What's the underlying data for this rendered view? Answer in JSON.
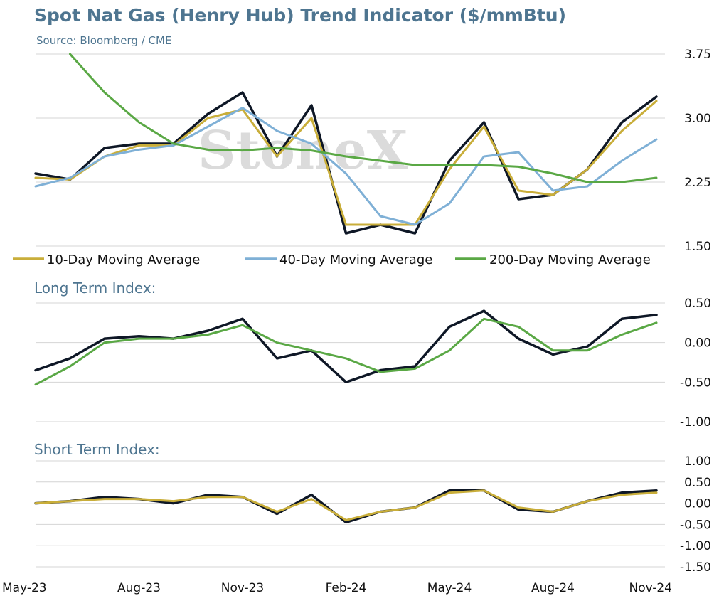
{
  "title": "Spot Nat Gas (Henry Hub) Trend Indicator ($/mmBtu)",
  "subtitle": "Source: Bloomberg / CME",
  "watermark": "StoneX",
  "x_tick_labels": [
    "May-23",
    "Aug-23",
    "Nov-23",
    "Feb-24",
    "May-24",
    "Aug-24",
    "Nov-24"
  ],
  "colors": {
    "spot": "#0e1726",
    "ma10": "#c9ae3a",
    "ma40": "#7fb0d6",
    "ma200": "#5aa845",
    "text": "#4e7590"
  },
  "chart_data": [
    {
      "type": "line",
      "panel": "price",
      "title": "Spot Nat Gas (Henry Hub) Trend Indicator ($/mmBtu)",
      "subtitle": "Source: Bloomberg / CME",
      "ylim": [
        1.5,
        3.75
      ],
      "yticks": [
        1.5,
        2.25,
        3.0,
        3.75
      ],
      "ytick_labels": [
        "1.50",
        "2.25",
        "3.00",
        "3.75"
      ],
      "grid": true,
      "legend_position": "bottom",
      "x_range": [
        "May-23",
        "Nov-24"
      ],
      "series": [
        {
          "key": "spot",
          "name": "",
          "color": "#0e1726",
          "points": [
            [
              "May-23",
              2.35
            ],
            [
              "Jun-23",
              2.28
            ],
            [
              "Jul-23",
              2.65
            ],
            [
              "Aug-23",
              2.7
            ],
            [
              "Sep-23",
              2.7
            ],
            [
              "Oct-23",
              3.05
            ],
            [
              "Nov-23",
              3.3
            ],
            [
              "Dec-23",
              2.55
            ],
            [
              "Jan-24",
              3.15
            ],
            [
              "Feb-24",
              1.65
            ],
            [
              "Mar-24",
              1.75
            ],
            [
              "Apr-24",
              1.65
            ],
            [
              "May-24",
              2.5
            ],
            [
              "Jun-24",
              2.95
            ],
            [
              "Jul-24",
              2.05
            ],
            [
              "Aug-24",
              2.1
            ],
            [
              "Sep-24",
              2.4
            ],
            [
              "Oct-24",
              2.95
            ],
            [
              "Nov-24",
              3.25
            ]
          ]
        },
        {
          "key": "ma10",
          "name": "10-Day Moving Average",
          "color": "#c9ae3a",
          "points": [
            [
              "May-23",
              2.3
            ],
            [
              "Jun-23",
              2.28
            ],
            [
              "Jul-23",
              2.55
            ],
            [
              "Aug-23",
              2.68
            ],
            [
              "Sep-23",
              2.68
            ],
            [
              "Oct-23",
              3.0
            ],
            [
              "Nov-23",
              3.1
            ],
            [
              "Dec-23",
              2.55
            ],
            [
              "Jan-24",
              3.0
            ],
            [
              "Feb-24",
              1.75
            ],
            [
              "Mar-24",
              1.75
            ],
            [
              "Apr-24",
              1.75
            ],
            [
              "May-24",
              2.4
            ],
            [
              "Jun-24",
              2.9
            ],
            [
              "Jul-24",
              2.15
            ],
            [
              "Aug-24",
              2.1
            ],
            [
              "Sep-24",
              2.4
            ],
            [
              "Oct-24",
              2.85
            ],
            [
              "Nov-24",
              3.2
            ]
          ]
        },
        {
          "key": "ma40",
          "name": "40-Day Moving Average",
          "color": "#7fb0d6",
          "points": [
            [
              "May-23",
              2.2
            ],
            [
              "Jun-23",
              2.3
            ],
            [
              "Jul-23",
              2.55
            ],
            [
              "Aug-23",
              2.63
            ],
            [
              "Sep-23",
              2.68
            ],
            [
              "Oct-23",
              2.9
            ],
            [
              "Nov-23",
              3.12
            ],
            [
              "Dec-23",
              2.85
            ],
            [
              "Jan-24",
              2.7
            ],
            [
              "Feb-24",
              2.35
            ],
            [
              "Mar-24",
              1.85
            ],
            [
              "Apr-24",
              1.75
            ],
            [
              "May-24",
              2.0
            ],
            [
              "Jun-24",
              2.55
            ],
            [
              "Jul-24",
              2.6
            ],
            [
              "Aug-24",
              2.15
            ],
            [
              "Sep-24",
              2.2
            ],
            [
              "Oct-24",
              2.5
            ],
            [
              "Nov-24",
              2.75
            ]
          ]
        },
        {
          "key": "ma200",
          "name": "200-Day Moving Average",
          "color": "#5aa845",
          "points": [
            [
              "Jun-23",
              3.75
            ],
            [
              "Jul-23",
              3.3
            ],
            [
              "Aug-23",
              2.95
            ],
            [
              "Sep-23",
              2.7
            ],
            [
              "Oct-23",
              2.63
            ],
            [
              "Nov-23",
              2.62
            ],
            [
              "Dec-23",
              2.65
            ],
            [
              "Jan-24",
              2.62
            ],
            [
              "Feb-24",
              2.55
            ],
            [
              "Mar-24",
              2.5
            ],
            [
              "Apr-24",
              2.45
            ],
            [
              "May-24",
              2.45
            ],
            [
              "Jun-24",
              2.45
            ],
            [
              "Jul-24",
              2.43
            ],
            [
              "Aug-24",
              2.35
            ],
            [
              "Sep-24",
              2.25
            ],
            [
              "Oct-24",
              2.25
            ],
            [
              "Nov-24",
              2.3
            ]
          ]
        }
      ]
    },
    {
      "type": "line",
      "panel": "long_term",
      "title": "Long Term Index:",
      "ylim": [
        -1.0,
        0.5
      ],
      "yticks": [
        -1.0,
        -0.5,
        0.0,
        0.5
      ],
      "ytick_labels": [
        "-1.00",
        "-0.50",
        "0.00",
        "0.50"
      ],
      "grid": true,
      "series": [
        {
          "key": "long_black",
          "name": "",
          "color": "#0e1726",
          "points": [
            [
              "May-23",
              -0.35
            ],
            [
              "Jun-23",
              -0.2
            ],
            [
              "Jul-23",
              0.05
            ],
            [
              "Aug-23",
              0.08
            ],
            [
              "Sep-23",
              0.05
            ],
            [
              "Oct-23",
              0.15
            ],
            [
              "Nov-23",
              0.3
            ],
            [
              "Dec-23",
              -0.2
            ],
            [
              "Jan-24",
              -0.1
            ],
            [
              "Feb-24",
              -0.5
            ],
            [
              "Mar-24",
              -0.35
            ],
            [
              "Apr-24",
              -0.3
            ],
            [
              "May-24",
              0.2
            ],
            [
              "Jun-24",
              0.4
            ],
            [
              "Jul-24",
              0.05
            ],
            [
              "Aug-24",
              -0.15
            ],
            [
              "Sep-24",
              -0.05
            ],
            [
              "Oct-24",
              0.3
            ],
            [
              "Nov-24",
              0.35
            ]
          ]
        },
        {
          "key": "long_green",
          "name": "",
          "color": "#5aa845",
          "points": [
            [
              "May-23",
              -0.53
            ],
            [
              "Jun-23",
              -0.3
            ],
            [
              "Jul-23",
              0.0
            ],
            [
              "Aug-23",
              0.05
            ],
            [
              "Sep-23",
              0.05
            ],
            [
              "Oct-23",
              0.1
            ],
            [
              "Nov-23",
              0.22
            ],
            [
              "Dec-23",
              0.0
            ],
            [
              "Jan-24",
              -0.1
            ],
            [
              "Feb-24",
              -0.2
            ],
            [
              "Mar-24",
              -0.37
            ],
            [
              "Apr-24",
              -0.33
            ],
            [
              "May-24",
              -0.1
            ],
            [
              "Jun-24",
              0.3
            ],
            [
              "Jul-24",
              0.2
            ],
            [
              "Aug-24",
              -0.1
            ],
            [
              "Sep-24",
              -0.1
            ],
            [
              "Oct-24",
              0.1
            ],
            [
              "Nov-24",
              0.25
            ]
          ]
        }
      ]
    },
    {
      "type": "line",
      "panel": "short_term",
      "title": "Short Term Index:",
      "ylim": [
        -1.5,
        1.0
      ],
      "yticks": [
        -1.5,
        -1.0,
        -0.5,
        0.0,
        0.5,
        1.0
      ],
      "ytick_labels": [
        "-1.50",
        "-1.00",
        "-0.50",
        "0.00",
        "0.50",
        "1.00"
      ],
      "grid": true,
      "series": [
        {
          "key": "short_black",
          "name": "",
          "color": "#0e1726",
          "points": [
            [
              "May-23",
              0.0
            ],
            [
              "Jun-23",
              0.05
            ],
            [
              "Jul-23",
              0.15
            ],
            [
              "Aug-23",
              0.1
            ],
            [
              "Sep-23",
              0.0
            ],
            [
              "Oct-23",
              0.2
            ],
            [
              "Nov-23",
              0.15
            ],
            [
              "Dec-23",
              -0.25
            ],
            [
              "Jan-24",
              0.2
            ],
            [
              "Feb-24",
              -0.45
            ],
            [
              "Mar-24",
              -0.2
            ],
            [
              "Apr-24",
              -0.1
            ],
            [
              "May-24",
              0.3
            ],
            [
              "Jun-24",
              0.3
            ],
            [
              "Jul-24",
              -0.15
            ],
            [
              "Aug-24",
              -0.2
            ],
            [
              "Sep-24",
              0.05
            ],
            [
              "Oct-24",
              0.25
            ],
            [
              "Nov-24",
              0.3
            ]
          ]
        },
        {
          "key": "short_gold",
          "name": "",
          "color": "#c9ae3a",
          "points": [
            [
              "May-23",
              0.0
            ],
            [
              "Jun-23",
              0.05
            ],
            [
              "Jul-23",
              0.1
            ],
            [
              "Aug-23",
              0.1
            ],
            [
              "Sep-23",
              0.05
            ],
            [
              "Oct-23",
              0.15
            ],
            [
              "Nov-23",
              0.15
            ],
            [
              "Dec-23",
              -0.2
            ],
            [
              "Jan-24",
              0.1
            ],
            [
              "Feb-24",
              -0.4
            ],
            [
              "Mar-24",
              -0.2
            ],
            [
              "Apr-24",
              -0.1
            ],
            [
              "May-24",
              0.25
            ],
            [
              "Jun-24",
              0.3
            ],
            [
              "Jul-24",
              -0.1
            ],
            [
              "Aug-24",
              -0.2
            ],
            [
              "Sep-24",
              0.05
            ],
            [
              "Oct-24",
              0.2
            ],
            [
              "Nov-24",
              0.25
            ]
          ]
        }
      ]
    }
  ]
}
